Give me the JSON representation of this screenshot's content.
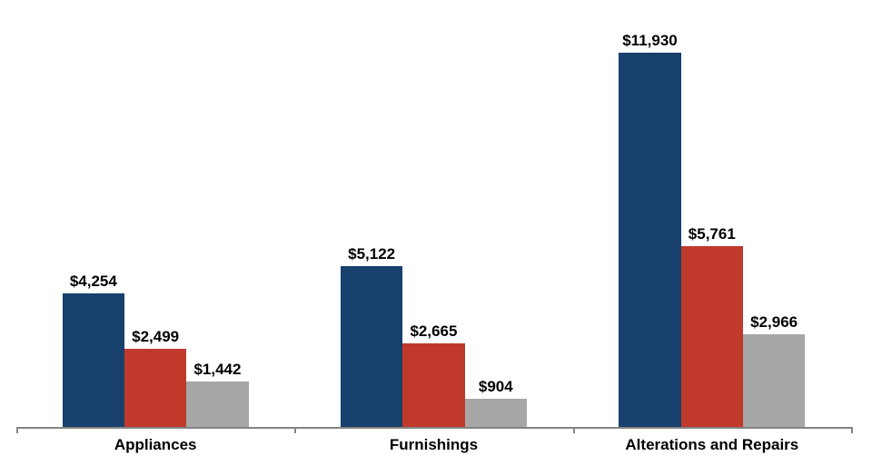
{
  "chart_data": {
    "type": "bar",
    "title": "",
    "xlabel": "",
    "ylabel": "",
    "categories": [
      "Appliances",
      "Furnishings",
      "Alterations and Repairs"
    ],
    "series": [
      {
        "color": "#17406D",
        "values": [
          4254,
          5122,
          11930
        ],
        "labels": [
          "$4,254",
          "$5,122",
          "$11,930"
        ]
      },
      {
        "color": "#C0392B",
        "values": [
          2499,
          2665,
          5761
        ],
        "labels": [
          "$2,499",
          "$2,665",
          "$5,761"
        ]
      },
      {
        "color": "#A6A6A6",
        "values": [
          1442,
          904,
          2966
        ],
        "labels": [
          "$1,442",
          "$904",
          "$2,966"
        ]
      }
    ],
    "ylim": [
      0,
      12000
    ],
    "grid": false,
    "legend_position": "none",
    "axis_color": "#848484",
    "data_label_color": "#000000",
    "category_label_color": "#000000",
    "background_color": "#FFFFFF"
  }
}
